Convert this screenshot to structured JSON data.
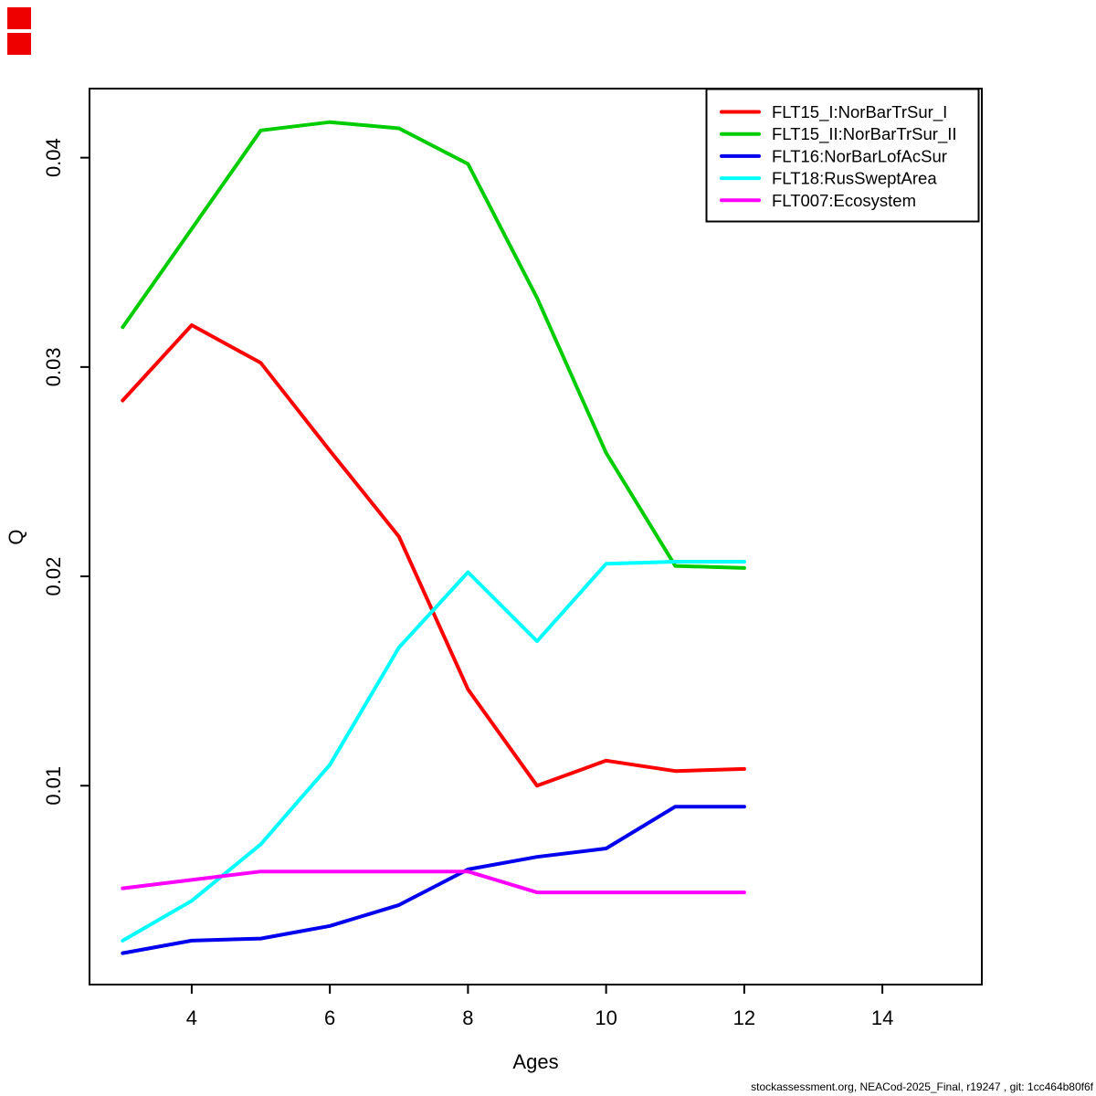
{
  "footer": "stockassessment.org, NEACod-2025_Final, r19247 , git: 1cc464b80f6f",
  "corner_markers": {
    "color": "#ee0000",
    "count": 2
  },
  "axis_color": "#000000",
  "chart_data": {
    "type": "line",
    "title": "",
    "xlabel": "Ages",
    "ylabel": "Q",
    "x": [
      3,
      4,
      5,
      6,
      7,
      8,
      9,
      10,
      11,
      12
    ],
    "x_ticks": [
      4,
      6,
      8,
      10,
      12,
      14
    ],
    "x_tick_labels": [
      "4",
      "6",
      "8",
      "10",
      "12",
      "14"
    ],
    "y_ticks": [
      0.01,
      0.02,
      0.03,
      0.04
    ],
    "y_tick_labels": [
      "0.01",
      "0.02",
      "0.03",
      "0.04"
    ],
    "xlim": [
      2.52,
      15.44
    ],
    "ylim": [
      0.0005,
      0.0433
    ],
    "grid": false,
    "legend_position": "topright",
    "series": [
      {
        "name": "FLT15_I:NorBarTrSur_I",
        "color": "#ff0000",
        "values": [
          0.0284,
          0.032,
          0.0302,
          0.026,
          0.0219,
          0.0146,
          0.01,
          0.0112,
          0.0107,
          0.0108
        ]
      },
      {
        "name": "FLT15_II:NorBarTrSur_II",
        "color": "#00cc00",
        "values": [
          0.0319,
          0.0366,
          0.0413,
          0.0417,
          0.0414,
          0.0397,
          0.0333,
          0.0259,
          0.0205,
          0.0204
        ]
      },
      {
        "name": "FLT16:NorBarLofAcSur",
        "color": "#0000ee",
        "values": [
          0.002,
          0.0026,
          0.0027,
          0.0033,
          0.0043,
          0.006,
          0.0066,
          0.007,
          0.009,
          0.009
        ]
      },
      {
        "name": "FLT18:RusSweptArea",
        "color": "#00ffff",
        "values": [
          0.0026,
          0.0045,
          0.0072,
          0.011,
          0.0166,
          0.0202,
          0.0169,
          0.0206,
          0.0207,
          0.0207
        ]
      },
      {
        "name": "FLT007:Ecosystem",
        "color": "#ff00ff",
        "values": [
          0.0051,
          0.0055,
          0.0059,
          0.0059,
          0.0059,
          0.0059,
          0.0049,
          0.0049,
          0.0049,
          0.0049
        ]
      }
    ]
  }
}
